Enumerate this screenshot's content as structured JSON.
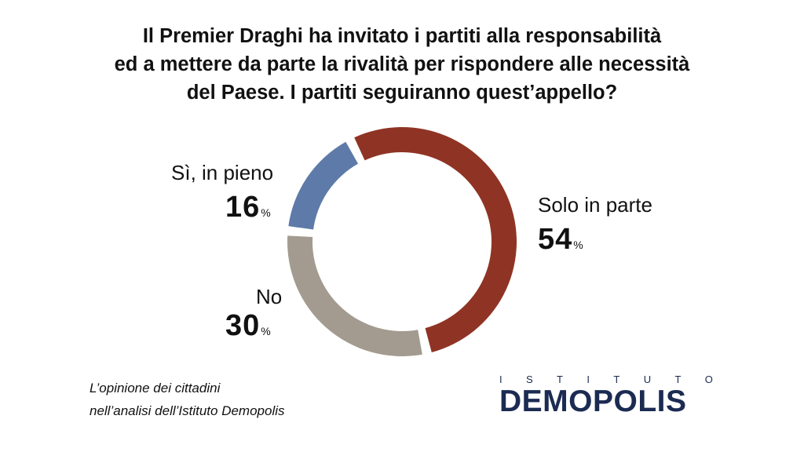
{
  "title_lines": [
    "Il Premier Draghi ha invitato i partiti alla responsabilità",
    "ed a mettere da parte la rivalità per rispondere alle necessità",
    "del Paese. I partiti seguiranno quest’appello?"
  ],
  "chart_data": {
    "type": "pie",
    "style": "donut",
    "categories": [
      "Solo in parte",
      "No",
      "Sì, in pieno"
    ],
    "values": [
      54,
      30,
      16
    ],
    "value_labels": [
      "54",
      "30",
      "16"
    ],
    "unit": "%",
    "colors": [
      "#8f3424",
      "#a39b90",
      "#5d7aa8"
    ]
  },
  "footnote": {
    "line1": "L’opinione dei cittadini",
    "line2": "nell’analisi dell’Istituto Demopolis"
  },
  "logo": {
    "top_letters": [
      "I",
      "S",
      "T",
      "I",
      "T",
      "U",
      "T",
      "O"
    ],
    "name": "DEMOPOLIS",
    "colors": {
      "primary": "#1b2b52",
      "accent": "#e8a02a"
    }
  }
}
